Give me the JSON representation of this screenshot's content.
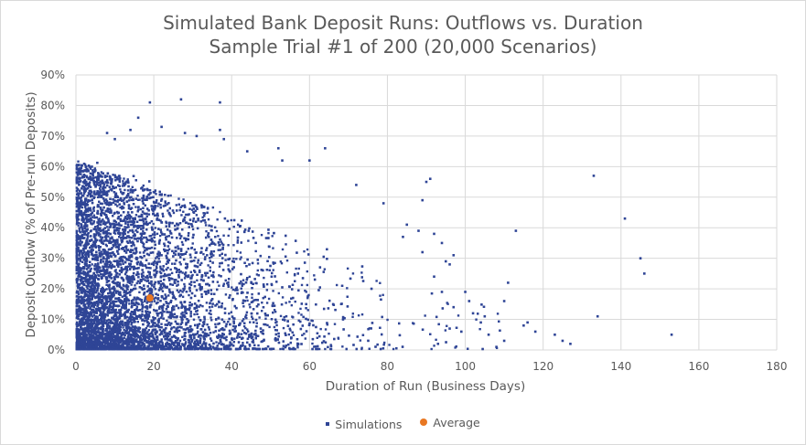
{
  "chart_data": {
    "type": "scatter",
    "title": "Simulated Bank Deposit Runs: Outflows vs. Duration",
    "subtitle": "Sample Trial #1 of 200 (20,000 Scenarios)",
    "xlabel": "Duration of Run (Business Days)",
    "ylabel": "Deposit Outflow (% of Pre-run Deposits)",
    "xlim": [
      0,
      180
    ],
    "ylim": [
      0,
      0.9
    ],
    "x_ticks": [
      "0",
      "20",
      "40",
      "60",
      "80",
      "100",
      "120",
      "140",
      "160",
      "180"
    ],
    "y_ticks": [
      "0%",
      "10%",
      "20%",
      "30%",
      "40%",
      "50%",
      "60%",
      "70%",
      "80%",
      "90%"
    ],
    "grid": "vertical and horizontal",
    "legend_position": "bottom",
    "series": [
      {
        "name": "Simulations",
        "color": "#2f4596",
        "points": [
          [
            19,
            0.81
          ],
          [
            27,
            0.82
          ],
          [
            37,
            0.81
          ],
          [
            16,
            0.76
          ],
          [
            14,
            0.72
          ],
          [
            37,
            0.72
          ],
          [
            22,
            0.73
          ],
          [
            28,
            0.71
          ],
          [
            31,
            0.7
          ],
          [
            8,
            0.71
          ],
          [
            10,
            0.69
          ],
          [
            38,
            0.69
          ],
          [
            44,
            0.65
          ],
          [
            52,
            0.66
          ],
          [
            64,
            0.66
          ],
          [
            60,
            0.62
          ],
          [
            53,
            0.62
          ],
          [
            72,
            0.54
          ],
          [
            79,
            0.48
          ],
          [
            90,
            0.55
          ],
          [
            91,
            0.56
          ],
          [
            89,
            0.49
          ],
          [
            133,
            0.57
          ],
          [
            141,
            0.43
          ],
          [
            145,
            0.3
          ],
          [
            146,
            0.25
          ],
          [
            153,
            0.05
          ],
          [
            127,
            0.02
          ],
          [
            134,
            0.11
          ],
          [
            113,
            0.39
          ],
          [
            111,
            0.22
          ],
          [
            110,
            0.16
          ],
          [
            116,
            0.09
          ],
          [
            115,
            0.08
          ],
          [
            104,
            0.09
          ],
          [
            102,
            0.12
          ],
          [
            105,
            0.11
          ],
          [
            100,
            0.19
          ],
          [
            96,
            0.28
          ],
          [
            95,
            0.29
          ],
          [
            97,
            0.31
          ],
          [
            92,
            0.38
          ],
          [
            94,
            0.35
          ],
          [
            85,
            0.41
          ],
          [
            88,
            0.39
          ],
          [
            84,
            0.37
          ],
          [
            110,
            0.03
          ],
          [
            106,
            0.05
          ],
          [
            108,
            0.01
          ],
          [
            99,
            0.06
          ],
          [
            93,
            0.02
          ],
          [
            96,
            0.07
          ],
          [
            123,
            0.05
          ],
          [
            125,
            0.03
          ],
          [
            118,
            0.06
          ],
          [
            101,
            0.16
          ],
          [
            92,
            0.24
          ],
          [
            97,
            0.14
          ],
          [
            94,
            0.19
          ],
          [
            89,
            0.32
          ]
        ]
      },
      {
        "name": "Average",
        "color": "#e87722",
        "points": [
          [
            19,
            0.17
          ]
        ]
      }
    ]
  }
}
